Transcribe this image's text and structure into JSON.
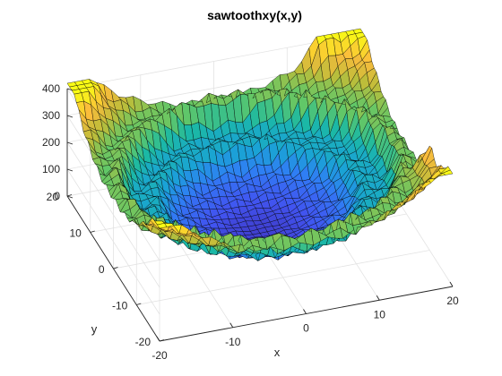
{
  "chart_data": {
    "type": "surface",
    "title": "sawtoothxy(x,y)",
    "xlabel": "x",
    "ylabel": "y",
    "zlabel": "",
    "xlim": [
      -20,
      20
    ],
    "ylim": [
      -20,
      20
    ],
    "zlim": [
      0,
      400
    ],
    "xticks": [
      -20,
      -10,
      0,
      10,
      20
    ],
    "yticks": [
      -20,
      -10,
      0,
      10,
      20
    ],
    "zticks": [
      0,
      100,
      200,
      300,
      400
    ],
    "grid": "on",
    "colormap": "parula",
    "colormap_stops": [
      "#3e26a8",
      "#4154f0",
      "#2f7ff4",
      "#1aa3d5",
      "#1bb9a4",
      "#62c767",
      "#bcbd3a",
      "#fbbc3c",
      "#f9fb15"
    ],
    "edge_color": "#000000",
    "surface": {
      "grid_step": 1,
      "max_peak": {
        "x": 15,
        "y": 20,
        "z": 420
      }
    }
  }
}
